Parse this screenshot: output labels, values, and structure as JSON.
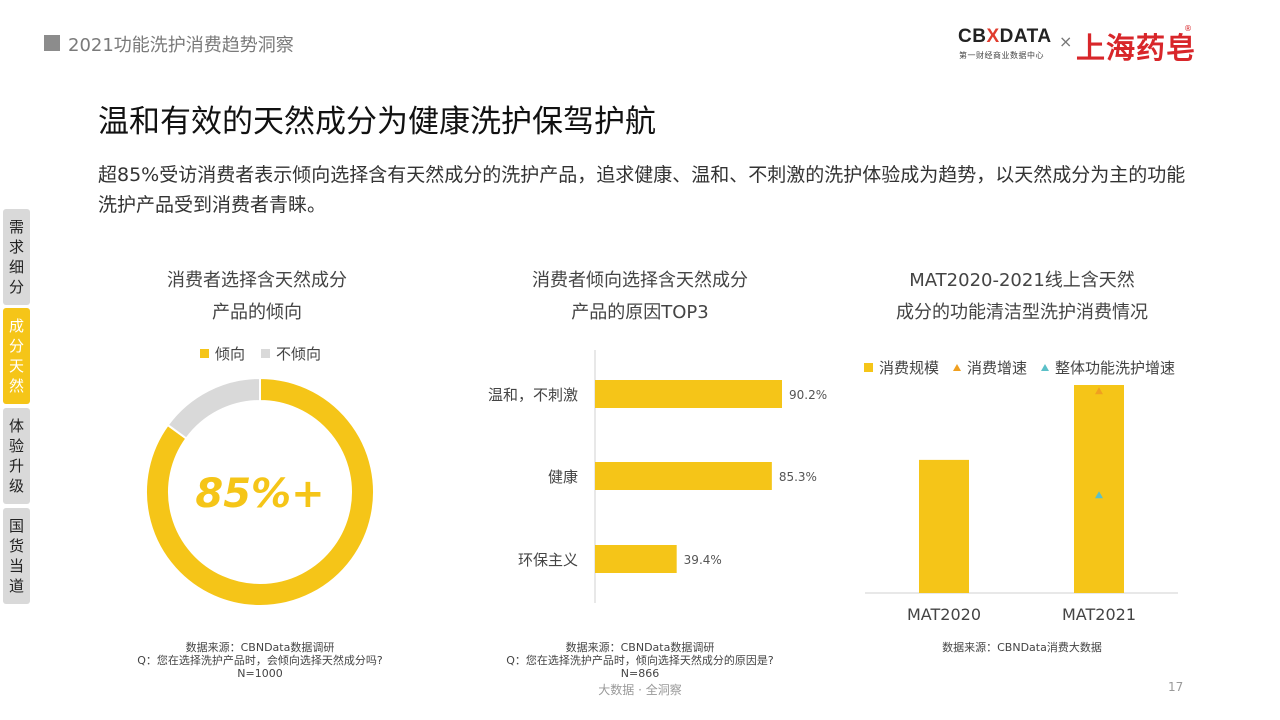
{
  "header": {
    "report_title": "2021功能洗护消费趋势洞察"
  },
  "logo": {
    "brand": "CBNDATA",
    "brand_x": "X",
    "brand_pre": "CB",
    "brand_post": "DATA",
    "tagline": "第一财经商业数据中心",
    "times": "×",
    "partner": "上海药皂",
    "reg": "®"
  },
  "title": "温和有效的天然成分为健康洗护保驾护航",
  "description": "超85%受访消费者表示倾向选择含有天然成分的洗护产品，追求健康、温和、不刺激的洗护体验成为趋势，以天然成分为主的功能洗护产品受到消费者青睐。",
  "side_nav": [
    {
      "label": "需求细分",
      "active": false
    },
    {
      "label": "成分天然",
      "active": true
    },
    {
      "label": "体验升级",
      "active": false
    },
    {
      "label": "国货当道",
      "active": false
    }
  ],
  "colors": {
    "accent": "#F5C518",
    "grey": "#D9D9D9",
    "triangle_orange": "#F0A020",
    "triangle_teal": "#5BC0C8"
  },
  "chart_data": [
    {
      "type": "pie",
      "title_line1": "消费者选择含天然成分",
      "title_line2": "产品的倾向",
      "legend": [
        "倾向",
        "不倾向"
      ],
      "values": [
        85,
        15
      ],
      "center_label": "85%+",
      "source": "数据来源：CBNData数据调研",
      "question": "Q：您在选择洗护产品时，会倾向选择天然成分吗?",
      "sample": "N=1000"
    },
    {
      "type": "bar",
      "orientation": "horizontal",
      "title_line1": "消费者倾向选择含天然成分",
      "title_line2": "产品的原因TOP3",
      "categories": [
        "温和，不刺激",
        "健康",
        "环保主义"
      ],
      "values": [
        90.2,
        85.3,
        39.4
      ],
      "value_labels": [
        "90.2%",
        "85.3%",
        "39.4%"
      ],
      "source": "数据来源：CBNData数据调研",
      "question": "Q：您在选择洗护产品时，倾向选择天然成分的原因是?",
      "sample": "N=866"
    },
    {
      "type": "bar",
      "title_line1": "MAT2020-2021线上含天然",
      "title_line2": "成分的功能清洁型洗护消费情况",
      "categories": [
        "MAT2020",
        "MAT2021"
      ],
      "legend": [
        "消费规模",
        "消费增速",
        "整体功能洗护增速"
      ],
      "series": [
        {
          "name": "消费规模",
          "values": [
            0.64,
            1.0
          ]
        },
        {
          "name": "消费增速",
          "values": [
            null,
            0.97
          ]
        },
        {
          "name": "整体功能洗护增速",
          "values": [
            null,
            0.47
          ]
        }
      ],
      "source": "数据来源：CBNData消费大数据"
    }
  ],
  "footer": {
    "tagline": "大数据 · 全洞察",
    "page": "17"
  }
}
